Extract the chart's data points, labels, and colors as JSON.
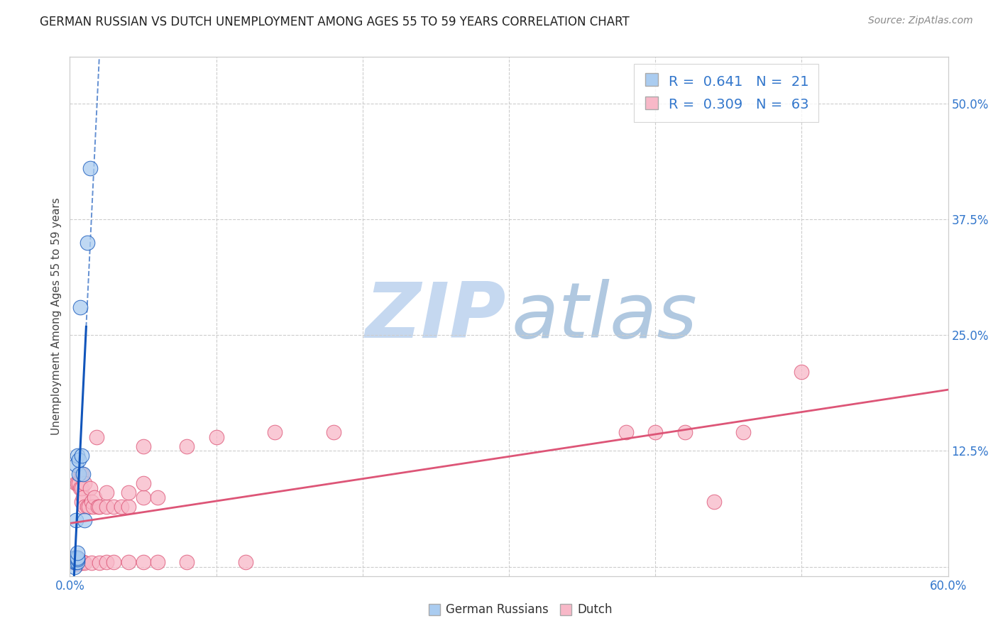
{
  "title": "GERMAN RUSSIAN VS DUTCH UNEMPLOYMENT AMONG AGES 55 TO 59 YEARS CORRELATION CHART",
  "source": "Source: ZipAtlas.com",
  "ylabel": "Unemployment Among Ages 55 to 59 years",
  "xlim": [
    0.0,
    0.6
  ],
  "ylim": [
    -0.01,
    0.55
  ],
  "yticks_right": [
    0.125,
    0.25,
    0.375,
    0.5
  ],
  "yticklabels_right": [
    "12.5%",
    "25.0%",
    "37.5%",
    "50.0%"
  ],
  "grid_yticks": [
    0.0,
    0.125,
    0.25,
    0.375,
    0.5
  ],
  "grid_xticks": [
    0.1,
    0.2,
    0.3,
    0.4,
    0.5
  ],
  "grid_color": "#cccccc",
  "background_color": "#ffffff",
  "legend_R1": "0.641",
  "legend_N1": "21",
  "legend_R2": "0.309",
  "legend_N2": "63",
  "series1_color": "#aaccf0",
  "series2_color": "#f8b8c8",
  "line1_color": "#1155bb",
  "line2_color": "#dd5577",
  "series1_name": "German Russians",
  "series2_name": "Dutch",
  "german_russian_x": [
    0.003,
    0.003,
    0.003,
    0.003,
    0.004,
    0.004,
    0.004,
    0.004,
    0.005,
    0.005,
    0.005,
    0.005,
    0.005,
    0.006,
    0.006,
    0.007,
    0.008,
    0.009,
    0.01,
    0.012,
    0.014
  ],
  "german_russian_y": [
    0.0,
    0.005,
    0.008,
    0.01,
    0.005,
    0.01,
    0.05,
    0.11,
    0.005,
    0.008,
    0.01,
    0.015,
    0.12,
    0.1,
    0.115,
    0.28,
    0.12,
    0.1,
    0.05,
    0.35,
    0.43
  ],
  "dutch_x": [
    0.002,
    0.003,
    0.003,
    0.004,
    0.004,
    0.005,
    0.005,
    0.005,
    0.005,
    0.005,
    0.006,
    0.006,
    0.006,
    0.007,
    0.007,
    0.007,
    0.008,
    0.008,
    0.008,
    0.008,
    0.009,
    0.009,
    0.01,
    0.01,
    0.01,
    0.012,
    0.013,
    0.014,
    0.015,
    0.015,
    0.016,
    0.017,
    0.018,
    0.019,
    0.02,
    0.02,
    0.025,
    0.025,
    0.025,
    0.03,
    0.03,
    0.035,
    0.04,
    0.04,
    0.04,
    0.05,
    0.05,
    0.05,
    0.05,
    0.06,
    0.06,
    0.08,
    0.08,
    0.1,
    0.12,
    0.14,
    0.18,
    0.38,
    0.4,
    0.42,
    0.44,
    0.46,
    0.5
  ],
  "dutch_y": [
    0.005,
    0.005,
    0.01,
    0.008,
    0.09,
    0.003,
    0.006,
    0.008,
    0.01,
    0.09,
    0.005,
    0.008,
    0.09,
    0.005,
    0.085,
    0.1,
    0.004,
    0.07,
    0.085,
    0.1,
    0.005,
    0.075,
    0.004,
    0.065,
    0.09,
    0.065,
    0.065,
    0.085,
    0.004,
    0.07,
    0.065,
    0.075,
    0.14,
    0.065,
    0.004,
    0.065,
    0.005,
    0.065,
    0.08,
    0.005,
    0.065,
    0.065,
    0.005,
    0.065,
    0.08,
    0.005,
    0.075,
    0.09,
    0.13,
    0.005,
    0.075,
    0.005,
    0.13,
    0.14,
    0.005,
    0.145,
    0.145,
    0.145,
    0.145,
    0.145,
    0.07,
    0.145,
    0.21
  ],
  "zip_color": "#c5d8f0",
  "atlas_color": "#b0c8e0",
  "title_fontsize": 12,
  "source_fontsize": 10,
  "tick_fontsize": 12,
  "ylabel_fontsize": 11,
  "legend_fontsize": 14
}
